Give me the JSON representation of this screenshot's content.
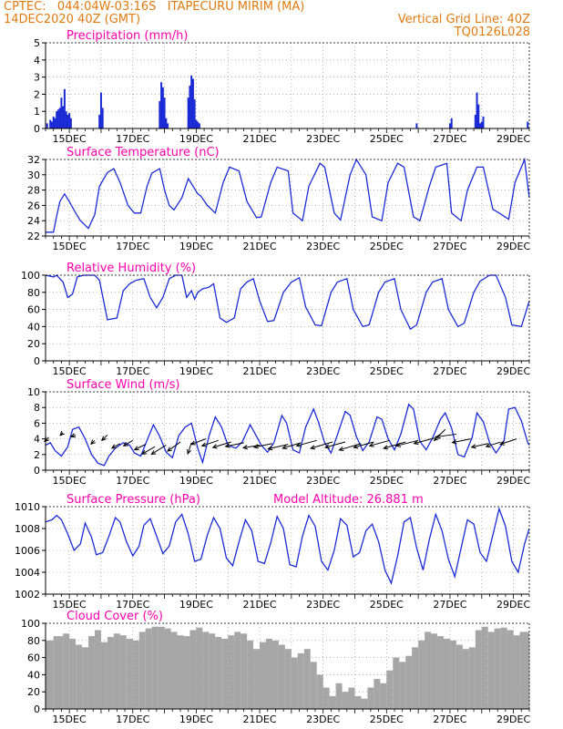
{
  "header": {
    "line1": "CPTEC:   044:04W-03:16S   ITAPECURU MIRIM (MA)",
    "line2_left": "14DEC2020 40Z (GMT)",
    "line2_right": "Vertical Grid Line: 40Z",
    "line3_right": "TQ0126L028"
  },
  "colors": {
    "header": "#e07a10",
    "title": "#ff00aa",
    "series": "#1a2bd6",
    "cloud": "#a6a6a6",
    "arrow": "#000000"
  },
  "x_ticks": [
    "15DEC",
    "17DEC",
    "19DEC",
    "21DEC",
    "23DEC",
    "25DEC",
    "27DEC",
    "29DEC"
  ],
  "chart_data": [
    {
      "id": "precip",
      "type": "bar",
      "title": "Precipitation (mm/h)",
      "xlim": [
        14.25,
        29.5
      ],
      "ylim": [
        0,
        5
      ],
      "yticks": [
        0,
        1,
        2,
        3,
        4,
        5
      ],
      "x": [
        14.3,
        14.4,
        14.45,
        14.5,
        14.55,
        14.6,
        14.65,
        14.7,
        14.75,
        14.8,
        14.85,
        14.9,
        14.95,
        15.0,
        15.05,
        15.95,
        16.0,
        16.05,
        17.85,
        17.9,
        17.95,
        18.0,
        18.05,
        18.1,
        18.75,
        18.8,
        18.85,
        18.9,
        18.95,
        19.0,
        19.05,
        19.1,
        25.95,
        27.0,
        27.05,
        27.8,
        27.85,
        27.9,
        27.95,
        28.0,
        28.05,
        29.45
      ],
      "values": [
        0.3,
        0.5,
        0.4,
        0.7,
        0.6,
        1.0,
        1.1,
        1.2,
        1.8,
        1.3,
        2.3,
        1.0,
        0.8,
        0.9,
        0.6,
        0.8,
        2.1,
        1.2,
        1.6,
        2.7,
        2.4,
        1.8,
        0.6,
        0.3,
        1.8,
        2.5,
        3.1,
        2.9,
        1.7,
        0.5,
        0.4,
        0.3,
        0.3,
        0.3,
        0.6,
        0.8,
        2.1,
        1.4,
        0.3,
        0.4,
        0.7,
        0.4
      ]
    },
    {
      "id": "temp",
      "type": "line",
      "title": "Surface Temperature (nC)",
      "xlim": [
        14.25,
        29.5
      ],
      "ylim": [
        22,
        32
      ],
      "yticks": [
        22,
        24,
        26,
        28,
        30,
        32
      ],
      "x": [
        14.25,
        14.5,
        14.58,
        14.7,
        14.85,
        15.0,
        15.2,
        15.35,
        15.5,
        15.6,
        15.8,
        15.95,
        16.2,
        16.4,
        16.6,
        16.85,
        17.05,
        17.25,
        17.45,
        17.6,
        17.85,
        18.0,
        18.15,
        18.3,
        18.55,
        18.75,
        18.9,
        19.05,
        19.15,
        19.35,
        19.6,
        19.85,
        20.05,
        20.35,
        20.6,
        20.9,
        21.05,
        21.35,
        21.55,
        21.9,
        22.05,
        22.35,
        22.55,
        22.9,
        23.05,
        23.35,
        23.55,
        23.85,
        24.05,
        24.35,
        24.55,
        24.85,
        25.05,
        25.35,
        25.55,
        25.85,
        26.05,
        26.35,
        26.55,
        26.9,
        27.05,
        27.35,
        27.55,
        27.85,
        28.05,
        28.35,
        28.55,
        28.85,
        29.05,
        29.35,
        29.5
      ],
      "values": [
        22.5,
        22.5,
        24.2,
        26.5,
        27.5,
        26.5,
        25.0,
        24.0,
        23.4,
        23.0,
        24.8,
        28.5,
        30.3,
        30.8,
        29.0,
        26.0,
        25.0,
        25.0,
        28.5,
        30.2,
        30.8,
        28.0,
        26.0,
        25.4,
        27.0,
        29.5,
        28.5,
        27.5,
        27.2,
        26.0,
        25.0,
        29.0,
        31.0,
        30.5,
        26.5,
        24.4,
        24.5,
        29.0,
        31.0,
        30.5,
        25.0,
        24.0,
        28.5,
        31.5,
        31.0,
        25.0,
        24.1,
        30.0,
        32.0,
        30.0,
        24.5,
        24.0,
        29.0,
        31.5,
        31.0,
        24.5,
        24.0,
        28.5,
        31.0,
        31.5,
        25.0,
        24.0,
        28.0,
        31.0,
        31.0,
        25.5,
        25.0,
        24.2,
        29.0,
        32.0,
        27.0
      ]
    },
    {
      "id": "rh",
      "type": "line",
      "title": "Relative Humidity (%)",
      "xlim": [
        14.25,
        29.5
      ],
      "ylim": [
        0,
        100
      ],
      "yticks": [
        0,
        20,
        40,
        60,
        80,
        100
      ],
      "x": [
        14.25,
        14.5,
        14.6,
        14.8,
        14.95,
        15.1,
        15.25,
        15.45,
        15.65,
        15.8,
        15.95,
        16.2,
        16.5,
        16.7,
        16.9,
        17.1,
        17.35,
        17.55,
        17.75,
        17.95,
        18.15,
        18.35,
        18.55,
        18.7,
        18.85,
        18.95,
        19.05,
        19.2,
        19.4,
        19.55,
        19.75,
        19.95,
        20.2,
        20.4,
        20.6,
        20.8,
        21.0,
        21.25,
        21.45,
        21.75,
        22.0,
        22.25,
        22.45,
        22.75,
        22.95,
        23.25,
        23.45,
        23.75,
        23.95,
        24.25,
        24.45,
        24.75,
        24.95,
        25.25,
        25.45,
        25.75,
        25.95,
        26.25,
        26.45,
        26.75,
        26.95,
        27.25,
        27.45,
        27.75,
        27.95,
        28.25,
        28.45,
        28.75,
        28.95,
        29.25,
        29.5
      ],
      "values": [
        100,
        98,
        100,
        92,
        74,
        78,
        98,
        100,
        100,
        100,
        94,
        48,
        50,
        82,
        90,
        94,
        96,
        74,
        62,
        74,
        96,
        100,
        100,
        74,
        82,
        72,
        80,
        84,
        86,
        90,
        50,
        45,
        50,
        84,
        92,
        96,
        70,
        46,
        47,
        80,
        92,
        97,
        63,
        42,
        41,
        80,
        92,
        96,
        60,
        40,
        42,
        80,
        92,
        96,
        60,
        37,
        42,
        80,
        92,
        96,
        60,
        40,
        44,
        80,
        93,
        100,
        100,
        74,
        42,
        40,
        70
      ]
    },
    {
      "id": "wind",
      "type": "line",
      "title": "Surface Wind (m/s)",
      "xlim": [
        14.25,
        29.5
      ],
      "ylim": [
        0,
        10
      ],
      "yticks": [
        0,
        2,
        4,
        6,
        8,
        10
      ],
      "x": [
        14.25,
        14.4,
        14.55,
        14.75,
        14.95,
        15.1,
        15.3,
        15.5,
        15.7,
        15.9,
        16.1,
        16.25,
        16.45,
        16.7,
        16.9,
        17.05,
        17.25,
        17.45,
        17.65,
        17.85,
        18.05,
        18.25,
        18.45,
        18.65,
        18.85,
        19.05,
        19.2,
        19.4,
        19.6,
        19.8,
        20.0,
        20.25,
        20.45,
        20.7,
        20.85,
        21.05,
        21.25,
        21.45,
        21.7,
        21.85,
        22.05,
        22.25,
        22.45,
        22.7,
        22.85,
        23.05,
        23.25,
        23.45,
        23.7,
        23.85,
        24.05,
        24.25,
        24.45,
        24.7,
        24.85,
        25.05,
        25.25,
        25.45,
        25.7,
        25.85,
        26.05,
        26.25,
        26.45,
        26.7,
        26.85,
        27.05,
        27.25,
        27.45,
        27.7,
        27.85,
        28.05,
        28.25,
        28.45,
        28.7,
        28.85,
        29.05,
        29.25,
        29.45,
        29.5
      ],
      "values": [
        3.2,
        3.5,
        2.5,
        1.8,
        3.0,
        5.2,
        5.5,
        4.0,
        2.0,
        0.9,
        0.6,
        1.8,
        2.8,
        3.5,
        3.2,
        2.2,
        1.8,
        3.8,
        5.8,
        4.3,
        2.3,
        1.6,
        4.4,
        5.5,
        6.0,
        2.8,
        1.0,
        4.3,
        6.8,
        5.5,
        3.2,
        2.8,
        3.6,
        5.8,
        4.7,
        3.2,
        2.3,
        3.5,
        7.0,
        6.0,
        2.6,
        2.2,
        5.5,
        7.8,
        6.2,
        3.5,
        2.2,
        4.5,
        7.5,
        7.0,
        4.3,
        2.5,
        3.6,
        6.8,
        6.5,
        4.0,
        2.6,
        4.6,
        8.4,
        7.8,
        3.7,
        2.6,
        4.1,
        6.5,
        7.3,
        5.4,
        2.0,
        1.7,
        4.2,
        7.3,
        6.2,
        3.5,
        2.2,
        3.7,
        7.8,
        8.0,
        6.3,
        3.5,
        3.2
      ],
      "arrows": [
        {
          "x": 14.35,
          "y": 4.2,
          "dx": -4.5,
          "dy": -4.5
        },
        {
          "x": 14.8,
          "y": 4.8,
          "dx": -3,
          "dy": -3
        },
        {
          "x": 15.2,
          "y": 4.5,
          "dx": -5,
          "dy": -2
        },
        {
          "x": 15.8,
          "y": 3.8,
          "dx": -4,
          "dy": -4
        },
        {
          "x": 16.2,
          "y": 4.5,
          "dx": -6,
          "dy": -6
        },
        {
          "x": 16.6,
          "y": 3.4,
          "dx": -9,
          "dy": -5
        },
        {
          "x": 17.0,
          "y": 3.8,
          "dx": -10,
          "dy": -6
        },
        {
          "x": 17.4,
          "y": 3.3,
          "dx": -12,
          "dy": -6
        },
        {
          "x": 17.7,
          "y": 3.0,
          "dx": -14,
          "dy": -8
        },
        {
          "x": 18.05,
          "y": 3.2,
          "dx": -16,
          "dy": -10
        },
        {
          "x": 18.5,
          "y": 3.6,
          "dx": -14,
          "dy": -10
        },
        {
          "x": 18.85,
          "y": 3.5,
          "dx": -4,
          "dy": -12
        },
        {
          "x": 19.3,
          "y": 4.0,
          "dx": -16,
          "dy": -6
        },
        {
          "x": 19.7,
          "y": 3.8,
          "dx": -18,
          "dy": -6
        },
        {
          "x": 20.1,
          "y": 3.6,
          "dx": -20,
          "dy": -6
        },
        {
          "x": 20.5,
          "y": 3.5,
          "dx": -20,
          "dy": -4
        },
        {
          "x": 21.0,
          "y": 3.2,
          "dx": -18,
          "dy": -3
        },
        {
          "x": 21.4,
          "y": 3.4,
          "dx": -20,
          "dy": -4
        },
        {
          "x": 21.9,
          "y": 3.3,
          "dx": -22,
          "dy": -5
        },
        {
          "x": 22.3,
          "y": 3.5,
          "dx": -20,
          "dy": -6
        },
        {
          "x": 22.8,
          "y": 3.8,
          "dx": -22,
          "dy": -6
        },
        {
          "x": 23.3,
          "y": 3.6,
          "dx": -24,
          "dy": -7
        },
        {
          "x": 23.7,
          "y": 3.6,
          "dx": -22,
          "dy": -6
        },
        {
          "x": 24.2,
          "y": 3.4,
          "dx": -24,
          "dy": -7
        },
        {
          "x": 24.6,
          "y": 3.6,
          "dx": -22,
          "dy": -6
        },
        {
          "x": 25.1,
          "y": 3.8,
          "dx": -22,
          "dy": -6
        },
        {
          "x": 25.6,
          "y": 3.6,
          "dx": -24,
          "dy": -7
        },
        {
          "x": 26.0,
          "y": 3.8,
          "dx": -24,
          "dy": -6
        },
        {
          "x": 26.5,
          "y": 4.1,
          "dx": -22,
          "dy": -6
        },
        {
          "x": 26.85,
          "y": 5.2,
          "dx": -12,
          "dy": -12
        },
        {
          "x": 27.2,
          "y": 4.6,
          "dx": -22,
          "dy": -3
        },
        {
          "x": 27.65,
          "y": 4.0,
          "dx": -20,
          "dy": -4
        },
        {
          "x": 28.2,
          "y": 3.4,
          "dx": -18,
          "dy": -4
        },
        {
          "x": 28.6,
          "y": 3.6,
          "dx": -16,
          "dy": -5
        },
        {
          "x": 29.1,
          "y": 4.0,
          "dx": -18,
          "dy": -6
        }
      ]
    },
    {
      "id": "press",
      "type": "line",
      "title": "Surface Pressure (hPa)",
      "annotation": "Model Altitude: 26.881  m",
      "xlim": [
        14.25,
        29.5
      ],
      "ylim": [
        1002,
        1010
      ],
      "yticks": [
        1002,
        1004,
        1006,
        1008,
        1010
      ],
      "x": [
        14.25,
        14.45,
        14.6,
        14.75,
        14.95,
        15.15,
        15.35,
        15.5,
        15.7,
        15.85,
        16.05,
        16.25,
        16.45,
        16.6,
        16.8,
        17.0,
        17.2,
        17.35,
        17.55,
        17.75,
        17.95,
        18.15,
        18.35,
        18.55,
        18.75,
        18.95,
        19.15,
        19.35,
        19.55,
        19.75,
        19.95,
        20.15,
        20.35,
        20.55,
        20.75,
        20.95,
        21.15,
        21.35,
        21.55,
        21.75,
        21.95,
        22.15,
        22.35,
        22.55,
        22.75,
        22.95,
        23.15,
        23.35,
        23.55,
        23.75,
        23.95,
        24.15,
        24.35,
        24.55,
        24.75,
        24.95,
        25.15,
        25.35,
        25.55,
        25.75,
        25.95,
        26.15,
        26.35,
        26.55,
        26.75,
        26.95,
        27.15,
        27.35,
        27.55,
        27.75,
        27.95,
        28.15,
        28.35,
        28.55,
        28.75,
        28.95,
        29.15,
        29.35,
        29.5
      ],
      "values": [
        1008.6,
        1008.8,
        1009.2,
        1008.8,
        1007.5,
        1006.0,
        1006.6,
        1008.5,
        1007.2,
        1005.6,
        1005.8,
        1007.3,
        1009.0,
        1008.6,
        1006.8,
        1005.5,
        1006.4,
        1008.3,
        1008.9,
        1007.3,
        1005.7,
        1006.4,
        1008.6,
        1009.3,
        1007.5,
        1005.0,
        1005.2,
        1007.4,
        1009.0,
        1008.0,
        1005.3,
        1004.6,
        1006.8,
        1008.8,
        1007.8,
        1005.0,
        1004.8,
        1006.7,
        1009.1,
        1008.0,
        1004.7,
        1004.5,
        1007.3,
        1009.2,
        1008.2,
        1005.0,
        1004.2,
        1006.0,
        1008.9,
        1008.3,
        1005.4,
        1005.8,
        1007.8,
        1008.4,
        1006.8,
        1004.2,
        1003.0,
        1005.5,
        1008.6,
        1009.0,
        1006.2,
        1004.2,
        1007.0,
        1009.3,
        1007.8,
        1005.2,
        1003.6,
        1006.2,
        1008.8,
        1008.4,
        1005.8,
        1005.0,
        1007.4,
        1009.8,
        1008.2,
        1005.0,
        1004.0,
        1006.6,
        1008.0
      ]
    },
    {
      "id": "cloud",
      "type": "area",
      "title": "Cloud Cover (%)",
      "xlim": [
        14.25,
        29.5
      ],
      "ylim": [
        0,
        100
      ],
      "yticks": [
        0,
        20,
        40,
        60,
        80,
        100
      ],
      "x": [
        14.25,
        14.5,
        14.8,
        15.0,
        15.2,
        15.4,
        15.6,
        15.8,
        16.0,
        16.2,
        16.4,
        16.6,
        16.8,
        17.0,
        17.2,
        17.4,
        17.6,
        17.8,
        18.0,
        18.2,
        18.4,
        18.6,
        18.8,
        19.0,
        19.2,
        19.4,
        19.6,
        19.8,
        20.0,
        20.2,
        20.4,
        20.6,
        20.8,
        21.0,
        21.2,
        21.4,
        21.6,
        21.8,
        22.0,
        22.2,
        22.4,
        22.6,
        22.8,
        23.0,
        23.2,
        23.4,
        23.6,
        23.8,
        24.0,
        24.2,
        24.4,
        24.6,
        24.8,
        25.0,
        25.2,
        25.4,
        25.6,
        25.8,
        26.0,
        26.2,
        26.4,
        26.6,
        26.8,
        27.0,
        27.2,
        27.4,
        27.6,
        27.8,
        28.0,
        28.2,
        28.4,
        28.6,
        28.8,
        29.0,
        29.2,
        29.5
      ],
      "values": [
        80,
        85,
        88,
        82,
        75,
        72,
        85,
        92,
        78,
        84,
        88,
        86,
        82,
        80,
        90,
        94,
        96,
        96,
        94,
        90,
        86,
        85,
        92,
        95,
        90,
        88,
        84,
        82,
        86,
        90,
        88,
        80,
        70,
        78,
        82,
        80,
        75,
        70,
        60,
        65,
        70,
        55,
        40,
        25,
        15,
        30,
        20,
        25,
        15,
        12,
        25,
        35,
        30,
        45,
        60,
        55,
        62,
        72,
        80,
        90,
        88,
        85,
        82,
        80,
        75,
        70,
        72,
        92,
        96,
        90,
        94,
        95,
        92,
        86,
        90,
        82
      ]
    }
  ]
}
